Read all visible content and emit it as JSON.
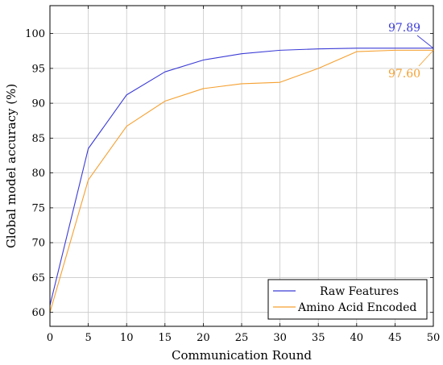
{
  "chart_data": {
    "type": "line",
    "title": "",
    "xlabel": "Communication Round",
    "ylabel": "Global model accuracy (%)",
    "xlim": [
      0,
      50
    ],
    "ylim": [
      58,
      104
    ],
    "xticks": [
      0,
      5,
      10,
      15,
      20,
      25,
      30,
      35,
      40,
      45,
      50
    ],
    "yticks": [
      60,
      65,
      70,
      75,
      80,
      85,
      90,
      95,
      100
    ],
    "grid": true,
    "legend_position": "bottom-right",
    "x": [
      0,
      5,
      10,
      15,
      20,
      25,
      30,
      35,
      40,
      45,
      50
    ],
    "series": [
      {
        "name": "Raw Features",
        "color": "#3b3bd6",
        "values": [
          61.0,
          83.5,
          91.2,
          94.5,
          96.2,
          97.1,
          97.6,
          97.8,
          97.9,
          97.9,
          97.89
        ]
      },
      {
        "name": "Amino Acid Encoded",
        "color": "#f5a030",
        "values": [
          60.0,
          79.0,
          86.7,
          90.3,
          92.1,
          92.8,
          93.0,
          95.0,
          97.4,
          97.6,
          97.6
        ]
      }
    ],
    "annotations": [
      {
        "text": "97.89",
        "series": 0,
        "x": 50,
        "y": 97.89,
        "color": "#3b3bd6"
      },
      {
        "text": "97.60",
        "series": 1,
        "x": 50,
        "y": 97.6,
        "color": "#f5a030"
      }
    ]
  }
}
